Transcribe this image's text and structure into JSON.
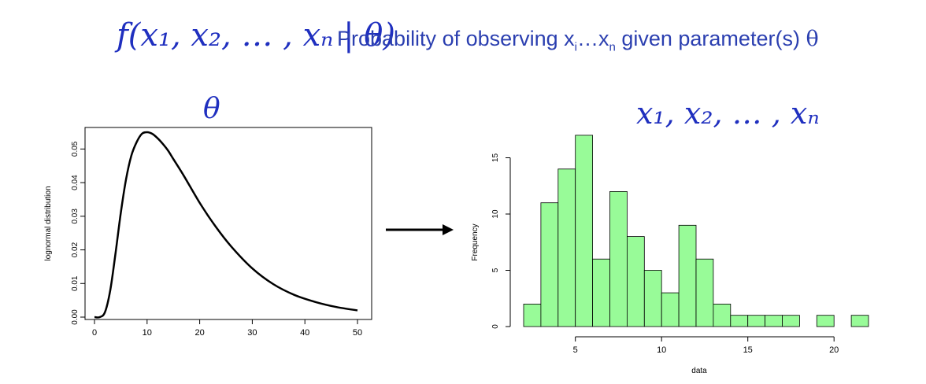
{
  "header": {
    "formula": "f(x₁, x₂, … , xₙ | θ)",
    "caption_prefix": "Probability of observing x",
    "caption_sub_i": "i",
    "caption_mid": "…x",
    "caption_sub_n": "n",
    "caption_suffix": " given parameter(s) ",
    "caption_theta": "θ"
  },
  "panels": {
    "left_title": "θ",
    "right_title": "x₁, x₂, … , xₙ"
  },
  "chart_data": [
    {
      "type": "line",
      "title": "",
      "xlabel": "",
      "ylabel": "lognormal distribution",
      "xlim": [
        0,
        50
      ],
      "ylim": [
        0,
        0.055
      ],
      "xticks": [
        0,
        10,
        20,
        30,
        40,
        50
      ],
      "yticks": [
        0.0,
        0.01,
        0.02,
        0.03,
        0.04,
        0.05
      ],
      "ytick_labels": [
        "0.00",
        "0.01",
        "0.02",
        "0.03",
        "0.04",
        "0.05"
      ],
      "grid": false,
      "series": [
        {
          "x": [
            0,
            1,
            2,
            3,
            4,
            5,
            6,
            7,
            8,
            9,
            10,
            11,
            12,
            13,
            14,
            15,
            17,
            20,
            23,
            26,
            30,
            34,
            38,
            42,
            46,
            50
          ],
          "y": [
            0.0,
            0.0,
            0.0015,
            0.008,
            0.019,
            0.031,
            0.041,
            0.048,
            0.052,
            0.0545,
            0.055,
            0.0545,
            0.0532,
            0.0515,
            0.0495,
            0.047,
            0.042,
            0.034,
            0.027,
            0.021,
            0.0145,
            0.0098,
            0.0066,
            0.0045,
            0.003,
            0.002
          ]
        }
      ]
    },
    {
      "type": "bar",
      "title": "",
      "xlabel": "data",
      "ylabel": "Frequency",
      "xlim": [
        1,
        23
      ],
      "ylim": [
        0,
        17
      ],
      "xticks": [
        5,
        10,
        15,
        20
      ],
      "yticks": [
        0,
        5,
        10,
        15
      ],
      "grid": false,
      "bar_color": "#98fb98",
      "bins": [
        [
          2,
          3
        ],
        [
          3,
          4
        ],
        [
          4,
          5
        ],
        [
          5,
          6
        ],
        [
          6,
          7
        ],
        [
          7,
          8
        ],
        [
          8,
          9
        ],
        [
          9,
          10
        ],
        [
          10,
          11
        ],
        [
          11,
          12
        ],
        [
          12,
          13
        ],
        [
          13,
          14
        ],
        [
          14,
          15
        ],
        [
          15,
          16
        ],
        [
          16,
          17
        ],
        [
          17,
          18
        ],
        [
          18,
          19
        ],
        [
          19,
          20
        ],
        [
          20,
          21
        ],
        [
          21,
          22
        ],
        [
          22,
          23
        ]
      ],
      "values": [
        2,
        11,
        14,
        17,
        6,
        12,
        8,
        5,
        3,
        9,
        6,
        2,
        1,
        1,
        1,
        1,
        0,
        1,
        0,
        1,
        0
      ]
    }
  ]
}
